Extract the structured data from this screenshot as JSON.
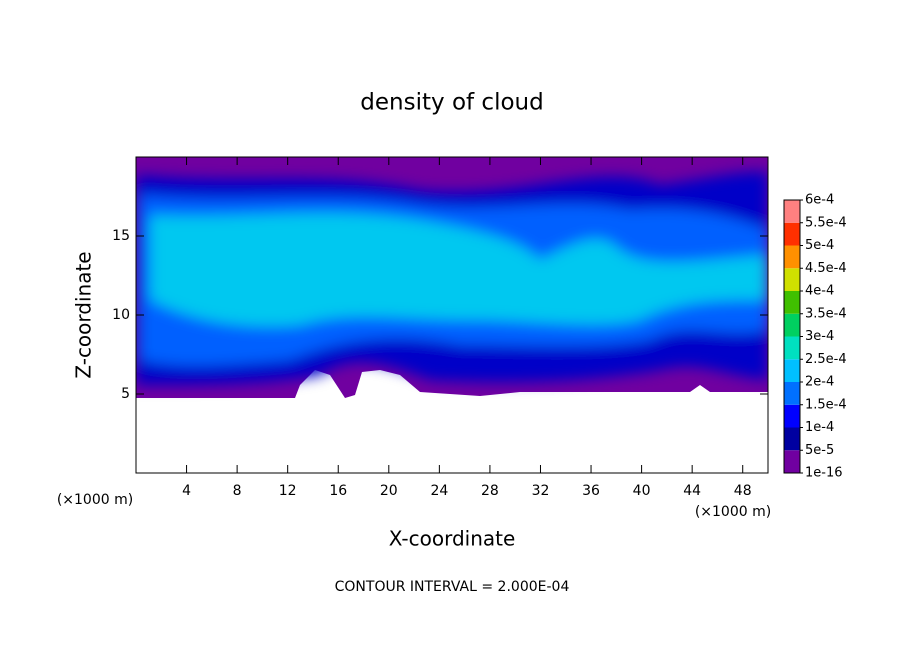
{
  "chart_data": {
    "type": "contour",
    "title": "density of cloud",
    "x_label": "X-coordinate",
    "y_label": "Z-coordinate",
    "x_unit": "(×1000 m)",
    "x_unit_right": "(×1000 m)",
    "annotation": "CONTOUR INTERVAL = 2.000E-04",
    "xlim": [
      0,
      50
    ],
    "ylim": [
      0,
      20
    ],
    "xticks": [
      4,
      8,
      12,
      16,
      20,
      24,
      28,
      32,
      36,
      40,
      44,
      48
    ],
    "yticks": [
      5,
      10,
      15
    ],
    "colorbar_lim": [
      0,
      0.0006
    ],
    "colorbar_ticks": [
      {
        "value": 1e-16,
        "label": "1e-16"
      },
      {
        "value": 5e-05,
        "label": "5e-5"
      },
      {
        "value": 0.0001,
        "label": "1e-4"
      },
      {
        "value": 0.00015,
        "label": "1.5e-4"
      },
      {
        "value": 0.0002,
        "label": "2e-4"
      },
      {
        "value": 0.00025,
        "label": "2.5e-4"
      },
      {
        "value": 0.0003,
        "label": "3e-4"
      },
      {
        "value": 0.00035,
        "label": "3.5e-4"
      },
      {
        "value": 0.0004,
        "label": "4e-4"
      },
      {
        "value": 0.00045,
        "label": "4.5e-4"
      },
      {
        "value": 0.0005,
        "label": "5e-4"
      },
      {
        "value": 0.00055,
        "label": "5.5e-4"
      },
      {
        "value": 0.0006,
        "label": "6e-4"
      }
    ],
    "colors": [
      "#7000a0",
      "#0000a0",
      "#0000ff",
      "#0070ff",
      "#00c0ff",
      "#00e0c0",
      "#00d060",
      "#40c000",
      "#d0e000",
      "#ff9000",
      "#ff3000",
      "#ff8080"
    ]
  }
}
